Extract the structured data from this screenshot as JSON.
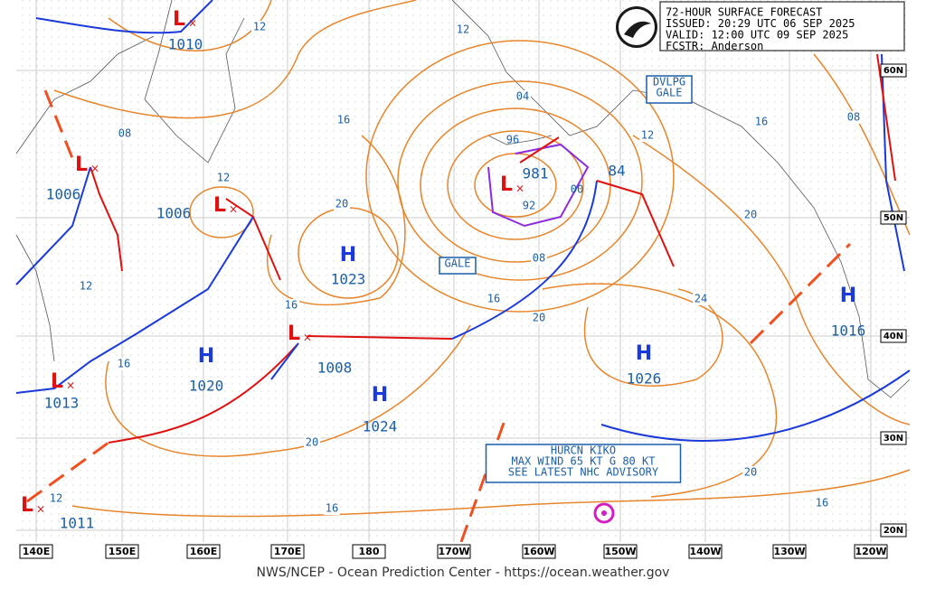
{
  "header": {
    "lines": [
      "72-HOUR SURFACE FORECAST",
      "ISSUED: 20:29 UTC 06 SEP 2025",
      "VALID:  12:00 UTC 09 SEP 2025",
      "FCSTR:  Anderson"
    ]
  },
  "highs": [
    {
      "symbol": "H",
      "pressure": "1023"
    },
    {
      "symbol": "H",
      "pressure": "1020"
    },
    {
      "symbol": "H",
      "pressure": "1024"
    },
    {
      "symbol": "H",
      "pressure": "1026"
    },
    {
      "symbol": "H",
      "pressure": "1016"
    }
  ],
  "lows": [
    {
      "symbol": "L",
      "pressure": "1010"
    },
    {
      "symbol": "L",
      "pressure": "1006"
    },
    {
      "symbol": "L",
      "pressure": "1006"
    },
    {
      "symbol": "L",
      "pressure": "981"
    },
    {
      "symbol": "L",
      "pressure": "1008"
    },
    {
      "symbol": "L",
      "pressure": "1013"
    },
    {
      "symbol": "L",
      "pressure": "1011"
    }
  ],
  "other_pressures": [
    "84",
    "00",
    "96",
    "92"
  ],
  "isobar_labels": [
    "12",
    "12",
    "04",
    "16",
    "08",
    "12",
    "12",
    "16",
    "08",
    "20",
    "20",
    "08",
    "16",
    "20",
    "24",
    "16",
    "12",
    "16",
    "20",
    "20",
    "16",
    "16",
    "12"
  ],
  "boxes": [
    {
      "lines": [
        "DVLPG",
        "GALE"
      ]
    },
    {
      "lines": [
        "GALE"
      ]
    },
    {
      "lines": [
        "HURCN KIKO",
        "MAX WIND 65 KT G 80 KT",
        "SEE LATEST NHC ADVISORY"
      ]
    }
  ],
  "longitudes": [
    "140E",
    "150E",
    "160E",
    "170E",
    "180",
    "170W",
    "160W",
    "150W",
    "140W",
    "130W",
    "120W"
  ],
  "latitudes": [
    "60N",
    "50N",
    "40N",
    "30N",
    "20N"
  ],
  "footer": "NWS/NCEP - Ocean Prediction Center - https://ocean.weather.gov"
}
